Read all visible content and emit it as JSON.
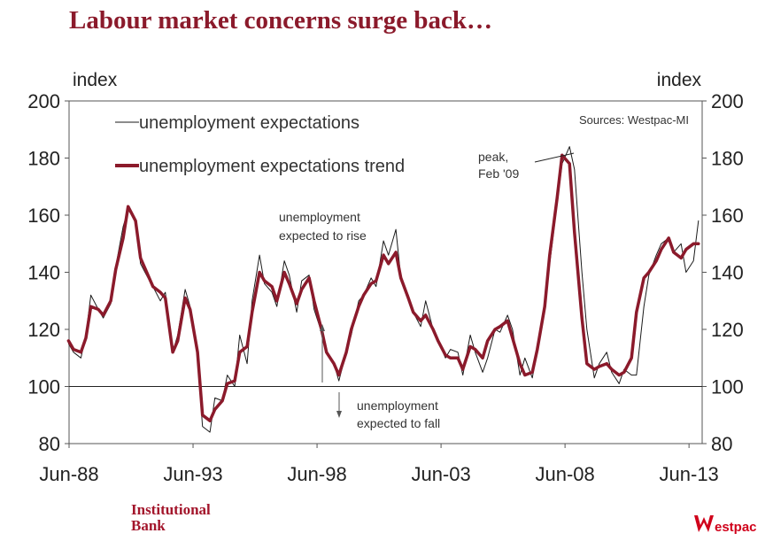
{
  "header": {
    "title": "Labour market concerns surge back…"
  },
  "footer": {
    "brand_left_line1": "Institutional",
    "brand_left_line2": "Bank",
    "brand_right": "estpac"
  },
  "chart_data": {
    "type": "line",
    "title": "Labour market concerns surge back…",
    "ylabel_left": "index",
    "ylabel_right": "index",
    "ylim": [
      80,
      200
    ],
    "yticks": [
      "200",
      "180",
      "160",
      "140",
      "120",
      "100",
      "80"
    ],
    "xlim": [
      1988.42,
      2013.95
    ],
    "xticks": [
      {
        "label": "Jun-88",
        "x": 1988.42
      },
      {
        "label": "Jun-93",
        "x": 1993.42
      },
      {
        "label": "Jun-98",
        "x": 1998.42
      },
      {
        "label": "Jun-03",
        "x": 2003.42
      },
      {
        "label": "Jun-08",
        "x": 2008.42
      },
      {
        "label": "Jun-13",
        "x": 2013.42
      }
    ],
    "reference_line": 100,
    "source": "Sources: Westpac-MI",
    "legend": [
      {
        "name": "unemployment expectations"
      },
      {
        "name": "unemployment expectations trend"
      }
    ],
    "annotations": {
      "rise_line1": "unemployment",
      "rise_line2": "expected to rise",
      "fall_line1": "unemployment",
      "fall_line2": "expected to fall",
      "peak_line1": "peak,",
      "peak_line2": "Feb '09"
    },
    "series": [
      {
        "name": "unemployment expectations",
        "color": "#1a1a1a",
        "x": [
          1988.4,
          1988.6,
          1988.9,
          1989.1,
          1989.3,
          1989.6,
          1989.8,
          1990.1,
          1990.3,
          1990.6,
          1990.8,
          1991.1,
          1991.3,
          1991.6,
          1991.8,
          1992.1,
          1992.3,
          1992.6,
          1992.8,
          1993.1,
          1993.3,
          1993.6,
          1993.8,
          1994.1,
          1994.3,
          1994.6,
          1994.8,
          1995.1,
          1995.3,
          1995.6,
          1995.8,
          1996.1,
          1996.3,
          1996.6,
          1996.8,
          1997.1,
          1997.3,
          1997.6,
          1997.8,
          1998.1,
          1998.3,
          1998.6,
          1998.8,
          1999.1,
          1999.3,
          1999.6,
          1999.8,
          2000.1,
          2000.3,
          2000.6,
          2000.8,
          2001.1,
          2001.3,
          2001.6,
          2001.8,
          2002.1,
          2002.3,
          2002.6,
          2002.8,
          2003.1,
          2003.3,
          2003.6,
          2003.8,
          2004.1,
          2004.3,
          2004.6,
          2004.8,
          2005.1,
          2005.3,
          2005.6,
          2005.8,
          2006.1,
          2006.3,
          2006.6,
          2006.8,
          2007.1,
          2007.3,
          2007.6,
          2007.8,
          2008.1,
          2008.3,
          2008.6,
          2008.8,
          2009.1,
          2009.3,
          2009.6,
          2009.8,
          2010.1,
          2010.3,
          2010.6,
          2010.8,
          2011.1,
          2011.3,
          2011.6,
          2011.8,
          2012.1,
          2012.3,
          2012.6,
          2012.8,
          2013.1,
          2013.3,
          2013.6,
          2013.8
        ],
        "values": [
          115,
          112,
          110,
          118,
          132,
          127,
          124,
          129,
          142,
          156,
          162,
          158,
          143,
          138,
          135,
          130,
          133,
          112,
          118,
          134,
          128,
          110,
          86,
          84,
          96,
          95,
          104,
          100,
          118,
          108,
          130,
          146,
          136,
          133,
          128,
          144,
          139,
          126,
          137,
          139,
          127,
          119,
          112,
          108,
          102,
          112,
          118,
          130,
          132,
          138,
          135,
          151,
          146,
          155,
          138,
          132,
          126,
          121,
          130,
          120,
          116,
          110,
          113,
          112,
          104,
          118,
          112,
          105,
          110,
          120,
          119,
          125,
          120,
          104,
          110,
          103,
          113,
          128,
          143,
          164,
          178,
          184,
          176,
          140,
          120,
          103,
          108,
          112,
          105,
          101,
          106,
          104,
          104,
          128,
          139,
          146,
          150,
          152,
          147,
          150,
          140,
          144,
          158
        ]
      },
      {
        "name": "unemployment expectations trend",
        "color": "#8b1a2b",
        "x": [
          1988.4,
          1988.6,
          1988.9,
          1989.1,
          1989.3,
          1989.6,
          1989.8,
          1990.1,
          1990.3,
          1990.6,
          1990.8,
          1991.1,
          1991.3,
          1991.6,
          1991.8,
          1992.1,
          1992.3,
          1992.6,
          1992.8,
          1993.1,
          1993.3,
          1993.6,
          1993.8,
          1994.1,
          1994.3,
          1994.6,
          1994.8,
          1995.1,
          1995.3,
          1995.6,
          1995.8,
          1996.1,
          1996.3,
          1996.6,
          1996.8,
          1997.1,
          1997.3,
          1997.6,
          1997.8,
          1998.1,
          1998.3,
          1998.6,
          1998.8,
          1999.1,
          1999.3,
          1999.6,
          1999.8,
          2000.1,
          2000.3,
          2000.6,
          2000.8,
          2001.1,
          2001.3,
          2001.6,
          2001.8,
          2002.1,
          2002.3,
          2002.6,
          2002.8,
          2003.1,
          2003.3,
          2003.6,
          2003.8,
          2004.1,
          2004.3,
          2004.6,
          2004.8,
          2005.1,
          2005.3,
          2005.6,
          2005.8,
          2006.1,
          2006.3,
          2006.6,
          2006.8,
          2007.1,
          2007.3,
          2007.6,
          2007.8,
          2008.1,
          2008.3,
          2008.6,
          2008.8,
          2009.1,
          2009.3,
          2009.6,
          2009.8,
          2010.1,
          2010.3,
          2010.6,
          2010.8,
          2011.1,
          2011.3,
          2011.6,
          2011.8,
          2012.1,
          2012.3,
          2012.6,
          2012.8,
          2013.1,
          2013.3,
          2013.6,
          2013.8
        ],
        "values": [
          116,
          113,
          112,
          117,
          128,
          127,
          125,
          130,
          141,
          152,
          163,
          158,
          145,
          139,
          135,
          133,
          131,
          112,
          116,
          131,
          127,
          112,
          90,
          88,
          92,
          95,
          101,
          102,
          112,
          114,
          126,
          140,
          137,
          135,
          130,
          140,
          136,
          129,
          134,
          138,
          130,
          120,
          112,
          108,
          104,
          112,
          120,
          128,
          132,
          136,
          137,
          146,
          143,
          147,
          138,
          131,
          126,
          123,
          125,
          120,
          116,
          111,
          110,
          110,
          106,
          114,
          113,
          110,
          116,
          120,
          121,
          123,
          117,
          108,
          104,
          105,
          113,
          128,
          146,
          166,
          181,
          178,
          154,
          124,
          108,
          106,
          107,
          108,
          106,
          104,
          105,
          110,
          126,
          138,
          140,
          144,
          148,
          152,
          147,
          145,
          148,
          150,
          150
        ]
      }
    ]
  }
}
